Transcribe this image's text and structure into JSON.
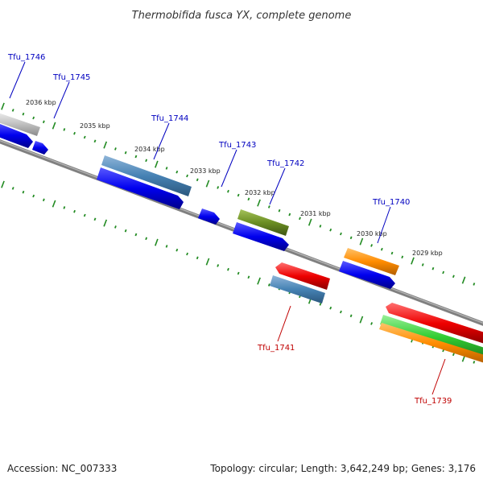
{
  "title": "Thermobifida fusca YX, complete genome",
  "footer": {
    "accession": "Accession: NC_007333",
    "topology": "Topology: circular; Length: 3,642,249 bp; Genes: 3,176"
  },
  "kbp_labels": [
    "2036 kbp",
    "2035 kbp",
    "2034 kbp",
    "2033 kbp",
    "2032 kbp",
    "2031 kbp",
    "2030 kbp",
    "2029 kbp"
  ],
  "gene_labels": {
    "tfu1746": "Tfu_1746",
    "tfu1745": "Tfu_1745",
    "tfu1744": "Tfu_1744",
    "tfu1743": "Tfu_1743",
    "tfu1742": "Tfu_1742",
    "tfu1741": "Tfu_1741",
    "tfu1740": "Tfu_1740",
    "tfu1739": "Tfu_1739"
  },
  "colors": {
    "forward_label": "#0000c0",
    "reverse_label": "#c00000",
    "backbone": "#808080",
    "ticks": "#228b22",
    "cds_forward": "#0000ee",
    "cds_reverse": "#ee0000",
    "gene_steelblue": "#4682b4",
    "gene_olive": "#6b8e23",
    "gene_orange": "#ff8c00",
    "gene_green": "#32cd32",
    "gene_gray": "#c0c0c0"
  }
}
